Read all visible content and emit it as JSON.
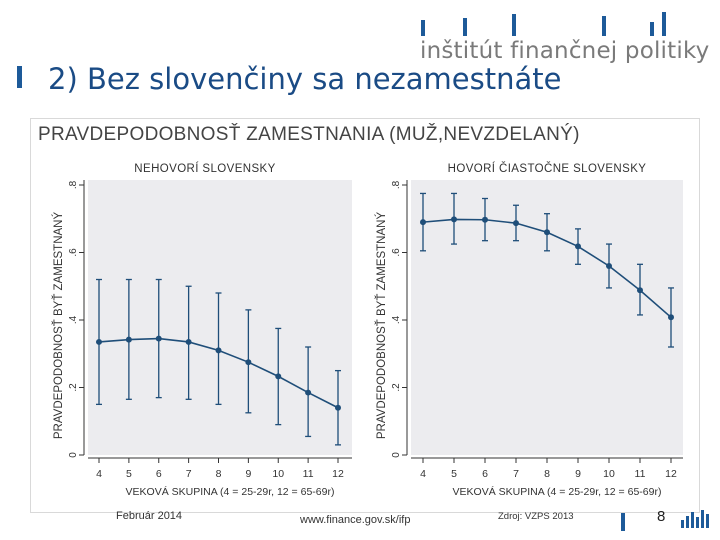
{
  "header": {
    "slide_title": "2)  Bez slovenčiny sa nezamestnáte",
    "logo_text": "inštitút finančnej politiky"
  },
  "footer": {
    "date": "Február 2014",
    "url": "www.finance.gov.sk/ifp",
    "source": "Zdroj: VZPS 2013",
    "page_number": "8"
  },
  "colors": {
    "brand_blue": "#1d5a99",
    "series": "#1f4e79",
    "panel_background": "#ececef"
  },
  "chart_data": {
    "title": "PRAVDEPODOBNOSŤ ZAMESTNANIA (MUŽ,NEVZDELANÝ)",
    "panels": [
      {
        "type": "line",
        "subtitle": "NEHOVORÍ SLOVENSKY",
        "xlabel": "VEKOVÁ SKUPINA (4 = 25-29r, 12 = 65-69r)",
        "ylabel": "PRAVDEPODOBNOSŤ BYŤ ZAMESTNANÝ",
        "x": [
          4,
          5,
          6,
          7,
          8,
          9,
          10,
          11,
          12
        ],
        "y": [
          0.335,
          0.342,
          0.345,
          0.335,
          0.31,
          0.275,
          0.233,
          0.185,
          0.14
        ],
        "ci_low": [
          0.15,
          0.165,
          0.17,
          0.165,
          0.15,
          0.125,
          0.09,
          0.055,
          0.03
        ],
        "ci_high": [
          0.52,
          0.52,
          0.52,
          0.5,
          0.48,
          0.43,
          0.375,
          0.32,
          0.25
        ],
        "x_ticks": [
          "4",
          "5",
          "6",
          "7",
          "8",
          "9",
          "10",
          "11",
          "12"
        ],
        "y_ticks": [
          "0",
          ".2",
          ".4",
          ".6",
          ".8"
        ],
        "ylim": [
          0,
          0.8
        ]
      },
      {
        "type": "line",
        "subtitle": "HOVORÍ ČIASTOČNE SLOVENSKY",
        "xlabel": "VEKOVÁ SKUPINA (4 = 25-29r, 12 = 65-69r)",
        "ylabel": "PRAVDEPODOBNOSŤ BYŤ ZAMESTNANÝ",
        "x": [
          4,
          5,
          6,
          7,
          8,
          9,
          10,
          11,
          12
        ],
        "y": [
          0.69,
          0.698,
          0.697,
          0.687,
          0.66,
          0.618,
          0.56,
          0.488,
          0.408
        ],
        "ci_low": [
          0.605,
          0.625,
          0.635,
          0.635,
          0.605,
          0.565,
          0.495,
          0.415,
          0.32
        ],
        "ci_high": [
          0.775,
          0.775,
          0.76,
          0.74,
          0.715,
          0.67,
          0.625,
          0.565,
          0.495
        ],
        "x_ticks": [
          "4",
          "5",
          "6",
          "7",
          "8",
          "9",
          "10",
          "11",
          "12"
        ],
        "y_ticks": [
          "0",
          ".2",
          ".4",
          ".6",
          ".8"
        ],
        "ylim": [
          0,
          0.8
        ]
      }
    ]
  }
}
